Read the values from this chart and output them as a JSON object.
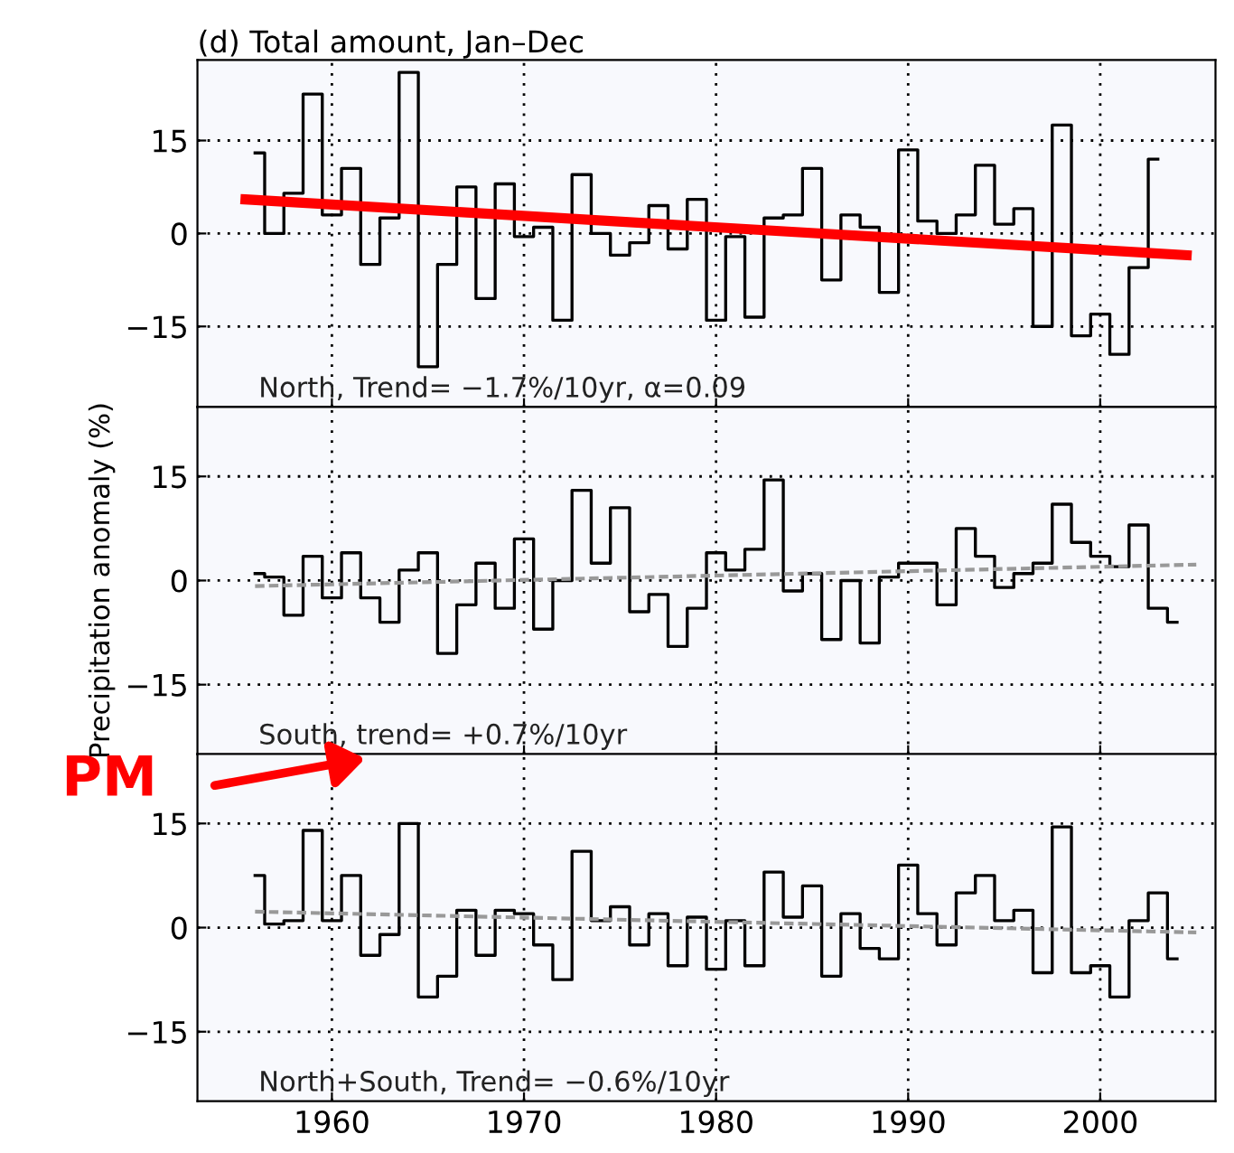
{
  "chart_data": [
    {
      "type": "step",
      "title": "(d) Total amount, Jan–Dec",
      "annotations": [
        "North, Trend= −1.7%/10yr, α=0.09"
      ],
      "xlim": [
        1953,
        2006
      ],
      "ylim": [
        -28,
        28
      ],
      "xticks": [
        1960,
        1970,
        1980,
        1990,
        2000
      ],
      "yticks": [
        -15,
        0,
        15
      ],
      "tick_labels": "y",
      "grid": true,
      "line_style": "solid",
      "marker": "none",
      "series": [
        {
          "color": "#000000",
          "x": [
            1956,
            1957,
            1958,
            1959,
            1960,
            1961,
            1962,
            1963,
            1964,
            1965,
            1966,
            1967,
            1968,
            1969,
            1970,
            1971,
            1972,
            1973,
            1974,
            1975,
            1976,
            1977,
            1978,
            1979,
            1980,
            1981,
            1982,
            1983,
            1984,
            1985,
            1986,
            1987,
            1988,
            1989,
            1990,
            1991,
            1992,
            1993,
            1994,
            1995,
            1996,
            1997,
            1998,
            1999,
            2000,
            2001,
            2002,
            2003
          ],
          "values": [
            13,
            0,
            6.5,
            22.5,
            3,
            10.5,
            -5,
            2.5,
            26,
            -21.5,
            -5,
            7.5,
            -10.5,
            8,
            -0.5,
            1,
            -14,
            9.5,
            0,
            -3.5,
            -1.5,
            4.5,
            -2.5,
            5.5,
            -14,
            -0.5,
            -13.5,
            2.5,
            3,
            10.5,
            -7.5,
            3,
            1,
            -9.5,
            13.5,
            2,
            0,
            3,
            11,
            1.5,
            4,
            -15,
            17.5,
            -16.5,
            -13,
            -19.5,
            -5.5,
            12
          ]
        },
        {
          "type": "line",
          "color": "#ff0000",
          "x": [
            1955.5,
            2004.5
          ],
          "values": [
            5.5,
            -3.5
          ]
        }
      ]
    },
    {
      "type": "step",
      "ylabel": "Precipitation anomaly (%)",
      "annotations": [
        "South, trend= +0.7%/10yr",
        "PM"
      ],
      "xlim": [
        1953,
        2006
      ],
      "ylim": [
        -25,
        25
      ],
      "xticks": [
        1960,
        1970,
        1980,
        1990,
        2000
      ],
      "yticks": [
        -15,
        0,
        15
      ],
      "tick_labels": "y",
      "grid": true,
      "line_style": "solid",
      "marker": "none",
      "series": [
        {
          "color": "#000000",
          "x": [
            1956,
            1957,
            1958,
            1959,
            1960,
            1961,
            1962,
            1963,
            1964,
            1965,
            1966,
            1967,
            1968,
            1969,
            1970,
            1971,
            1972,
            1973,
            1974,
            1975,
            1976,
            1977,
            1978,
            1979,
            1980,
            1981,
            1982,
            1983,
            1984,
            1985,
            1986,
            1987,
            1988,
            1989,
            1990,
            1991,
            1992,
            1993,
            1994,
            1995,
            1996,
            1997,
            1998,
            1999,
            2000,
            2001,
            2002,
            2003,
            2004
          ],
          "values": [
            1,
            0.5,
            -5,
            3.5,
            -2.5,
            4,
            -2.5,
            -6,
            1.5,
            4,
            -10.5,
            -3.5,
            2.5,
            -4,
            6,
            -7,
            0,
            13,
            2.5,
            10.5,
            -4.5,
            -2,
            -9.5,
            -4,
            4,
            1.5,
            4.5,
            14.5,
            -1.5,
            1,
            -8.5,
            0,
            -9,
            0.5,
            2.5,
            2.5,
            -3.5,
            7.5,
            3.5,
            -1,
            1,
            2.5,
            11,
            5.5,
            3.5,
            2,
            8,
            -4,
            -6
          ]
        },
        {
          "type": "line",
          "color": "#999999",
          "line_style": "dashed",
          "x": [
            1956,
            2005
          ],
          "values": [
            -0.8,
            2.3
          ]
        }
      ]
    },
    {
      "type": "step",
      "annotations": [
        "North+South, Trend= −0.6%/10yr"
      ],
      "xlim": [
        1953,
        2006
      ],
      "ylim": [
        -25,
        25
      ],
      "xticks": [
        1960,
        1970,
        1980,
        1990,
        2000
      ],
      "yticks": [
        -15,
        0,
        15
      ],
      "grid": true,
      "line_style": "solid",
      "marker": "none",
      "series": [
        {
          "color": "#000000",
          "x": [
            1956,
            1957,
            1958,
            1959,
            1960,
            1961,
            1962,
            1963,
            1964,
            1965,
            1966,
            1967,
            1968,
            1969,
            1970,
            1971,
            1972,
            1973,
            1974,
            1975,
            1976,
            1977,
            1978,
            1979,
            1980,
            1981,
            1982,
            1983,
            1984,
            1985,
            1986,
            1987,
            1988,
            1989,
            1990,
            1991,
            1992,
            1993,
            1994,
            1995,
            1996,
            1997,
            1998,
            1999,
            2000,
            2001,
            2002,
            2003,
            2004
          ],
          "values": [
            7.5,
            0.5,
            1,
            14,
            1,
            7.5,
            -4,
            -1,
            15,
            -10,
            -7,
            2.5,
            -4,
            2.5,
            2,
            -2.5,
            -7.5,
            11,
            1,
            3,
            -2.5,
            2,
            -5.5,
            1.5,
            -6,
            1,
            -5.5,
            8,
            1.5,
            6,
            -7,
            2,
            -3,
            -4.5,
            9,
            2,
            -2.5,
            5,
            7.5,
            1,
            2.5,
            -6.5,
            14.5,
            -6.5,
            -5.5,
            -10,
            1,
            5,
            -4.5
          ]
        },
        {
          "type": "line",
          "color": "#999999",
          "line_style": "dashed",
          "x": [
            1956,
            2005
          ],
          "values": [
            2.3,
            -0.7
          ]
        }
      ]
    }
  ]
}
